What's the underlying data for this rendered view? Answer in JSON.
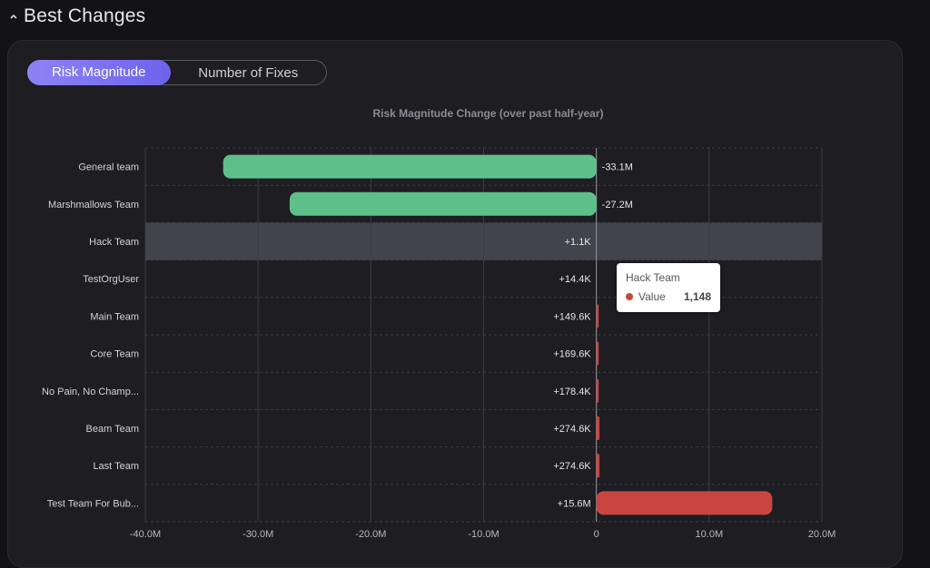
{
  "section": {
    "title": "Best Changes",
    "collapse_icon": "chevron-up-icon"
  },
  "toggle": {
    "options": [
      "Risk Magnitude",
      "Number of Fixes"
    ],
    "active": "Risk Magnitude"
  },
  "colors": {
    "negative": "#5fbf8a",
    "positive": "#c8463f",
    "highlight_band": "#4a4a54",
    "accent": "#7b72f0"
  },
  "chart_data": {
    "type": "bar",
    "orientation": "horizontal",
    "title": "Risk Magnitude Change (over past half-year)",
    "categories": [
      "General team",
      "Marshmallows Team",
      "Hack Team",
      "TestOrgUser",
      "Main Team",
      "Core Team",
      "No Pain, No Champ...",
      "Beam Team",
      "Last Team",
      "Test Team For Bub..."
    ],
    "values": [
      -33100000,
      -27200000,
      1148,
      14400,
      149600,
      169600,
      178400,
      274600,
      274600,
      15600000
    ],
    "data_labels": [
      "-33.1M",
      "-27.2M",
      "+1.1K",
      "+14.4K",
      "+149.6K",
      "+169.6K",
      "+178.4K",
      "+274.6K",
      "+274.6K",
      "+15.6M"
    ],
    "xlim": [
      -40000000,
      20000000
    ],
    "x_ticks": [
      -40000000,
      -30000000,
      -20000000,
      -10000000,
      0,
      10000000,
      20000000
    ],
    "x_tick_labels": [
      "-40.0M",
      "-30.0M",
      "-20.0M",
      "-10.0M",
      "0",
      "10.0M",
      "20.0M"
    ],
    "grid": true,
    "highlighted_category": "Hack Team"
  },
  "tooltip": {
    "title": "Hack Team",
    "label": "Value",
    "value": "1,148"
  }
}
